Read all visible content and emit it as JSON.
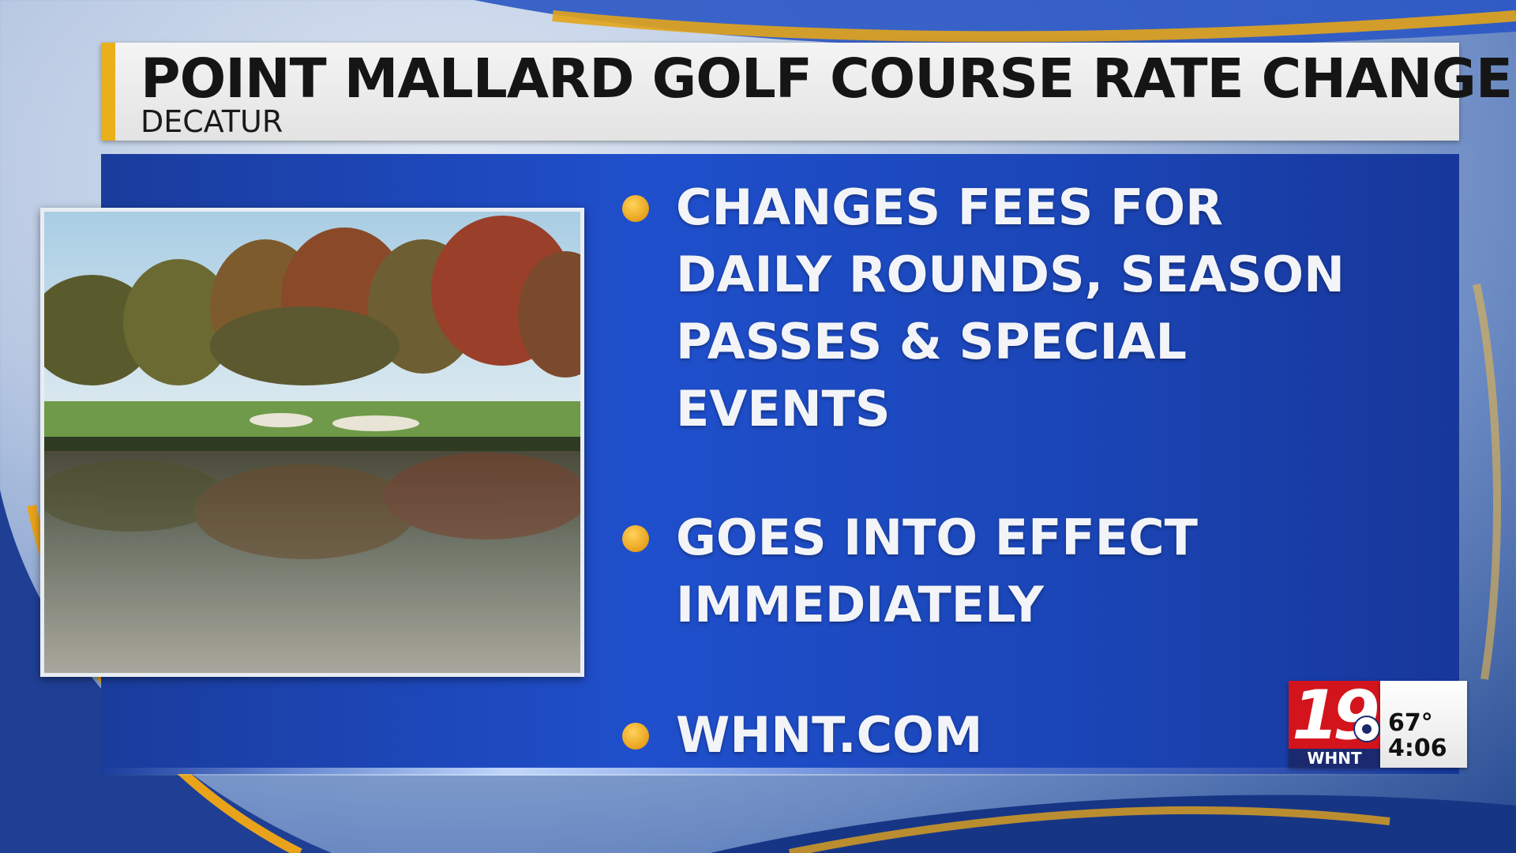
{
  "graphic": {
    "headline": "POINT MALLARD GOLF COURSE RATE CHANGES",
    "location": "DECATUR"
  },
  "photo": {
    "subject": "golf course pond reflecting autumn trees"
  },
  "bullets": [
    {
      "text": "CHANGES FEES FOR DAILY ROUNDS, SEASON PASSES & SPECIAL EVENTS"
    },
    {
      "text": "GOES INTO EFFECT IMMEDIATELY"
    },
    {
      "text": "WHNT.COM"
    }
  ],
  "station_bug": {
    "channel_number": "19",
    "call_letters": "WHNT",
    "network_icon": "cbs-eye-icon",
    "temperature": "67°",
    "time": "4:06"
  },
  "colors": {
    "accent_gold": "#e8b019",
    "panel_blue": "#1f4fcc",
    "logo_red": "#d4141c",
    "logo_navy": "#1b2a6e"
  }
}
